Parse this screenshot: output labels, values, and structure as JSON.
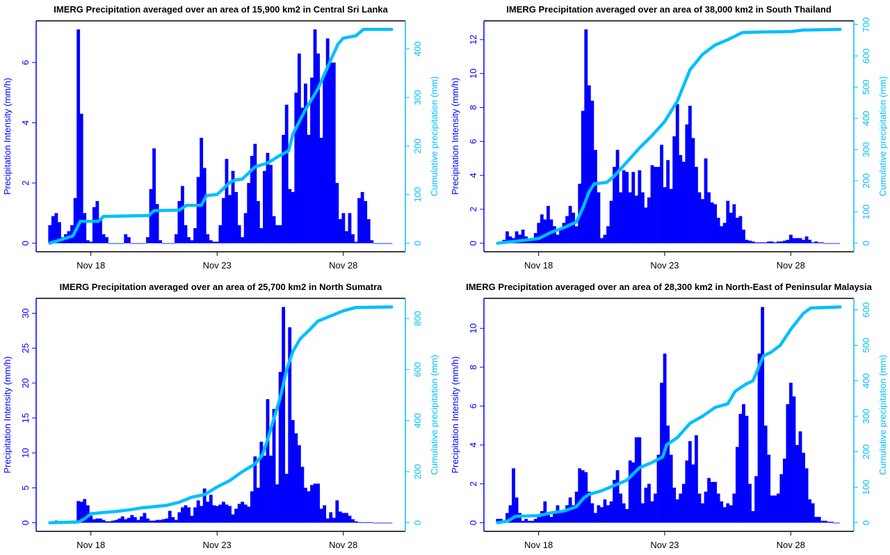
{
  "colors": {
    "intensity": "#0000ff",
    "cumulative": "#00bfff",
    "frame": "#000000"
  },
  "chart_data": [
    {
      "type": "bar+line",
      "title": "IMERG Precipitation averaged over an area of 15,900 km2 in Central Sri Lanka",
      "ylabel": "Precipitation Intensity (mm/h)",
      "ylabel_right": "Cumulative precipitation (mm)",
      "x_ticks": [
        "Nov 18",
        "Nov 23",
        "Nov 28"
      ],
      "y_ticks": [
        "0",
        "2",
        "4",
        "6"
      ],
      "y_ticks_right": [
        "0",
        "100",
        "200",
        "300",
        "400"
      ],
      "grid": false,
      "intensity": {
        "start": "Nov 16 09:00",
        "interval_hours": 3,
        "values": [
          0.6,
          0.9,
          1.0,
          0.7,
          0.2,
          0.3,
          0.4,
          0.6,
          1.5,
          7.1,
          4.3,
          1.0,
          0.1,
          0.05,
          1.2,
          1.4,
          0.8,
          0.3,
          0.2,
          0,
          0,
          0,
          0,
          0,
          0.3,
          0.2,
          0,
          0,
          0,
          0,
          0,
          0.2,
          1.8,
          3.15,
          1.3,
          0.1,
          0,
          0,
          0,
          0,
          0.3,
          1.4,
          1.9,
          0.6,
          0.2,
          0.1,
          0.5,
          2.2,
          3.5,
          2.5,
          0.3,
          0.1,
          0.05,
          0.05,
          0.6,
          1.5,
          2.8,
          1.6,
          2.4,
          1.7,
          0.6,
          0.2,
          1.0,
          2.0,
          2.9,
          3.3,
          1.4,
          0.5,
          2.4,
          3.0,
          2.6,
          0.9,
          0.6,
          0.6,
          3.6,
          4.6,
          1.8,
          1.7,
          5.0,
          6.3,
          4.5,
          5.3,
          3.6,
          5.5,
          7.1,
          6.3,
          3.5,
          5.6,
          6.8,
          6.0,
          6.0,
          2.0,
          0.8,
          1.0,
          0.4,
          1.0,
          0.3,
          0.05,
          1.5,
          1.7,
          1.4,
          0.8,
          0.1,
          0,
          0,
          0,
          0,
          0,
          0
        ]
      },
      "cumulative": [
        [
          "Nov 16 09:00",
          0
        ],
        [
          "Nov 17 07:00",
          15
        ],
        [
          "Nov 17 14:00",
          45
        ],
        [
          "Nov 18 07:00",
          45
        ],
        [
          "Nov 18 12:00",
          55
        ],
        [
          "Nov 20 07:00",
          57
        ],
        [
          "Nov 20 12:00",
          67
        ],
        [
          "Nov 21 12:00",
          68
        ],
        [
          "Nov 21 19:00",
          78
        ],
        [
          "Nov 22 09:00",
          78
        ],
        [
          "Nov 22 14:00",
          98
        ],
        [
          "Nov 23 00:00",
          100
        ],
        [
          "Nov 23 12:00",
          125
        ],
        [
          "Nov 23 17:00",
          130
        ],
        [
          "Nov 24 00:00",
          132
        ],
        [
          "Nov 24 12:00",
          157
        ],
        [
          "Nov 25 00:00",
          165
        ],
        [
          "Nov 25 12:00",
          181
        ],
        [
          "Nov 25 20:00",
          190
        ],
        [
          "Nov 26 00:00",
          224
        ],
        [
          "Nov 26 12:00",
          275
        ],
        [
          "Nov 27 00:00",
          318
        ],
        [
          "Nov 27 12:00",
          377
        ],
        [
          "Nov 27 19:00",
          410
        ],
        [
          "Nov 28 00:00",
          422
        ],
        [
          "Nov 28 12:00",
          427
        ],
        [
          "Nov 28 19:00",
          440
        ],
        [
          "Nov 29 22:00",
          440
        ]
      ]
    },
    {
      "type": "bar+line",
      "title": "IMERG Precipitation averaged over an area of 38,000 km2 in South Thailand",
      "ylabel": "Precipitation Intensity (mm/h)",
      "ylabel_right": "Cumulative precipitation (mm)",
      "x_ticks": [
        "Nov 18",
        "Nov 23",
        "Nov 28"
      ],
      "y_ticks": [
        "0",
        "2",
        "4",
        "6",
        "8",
        "10",
        "12"
      ],
      "y_ticks_right": [
        "0",
        "100",
        "200",
        "300",
        "400",
        "500",
        "600",
        "700"
      ],
      "grid": false,
      "intensity": {
        "start": "Nov 16 09:00",
        "interval_hours": 3,
        "values": [
          0,
          0.1,
          0.2,
          0.7,
          0.4,
          0.3,
          0.7,
          0.5,
          0.8,
          0.4,
          0.2,
          0.3,
          0.6,
          1.2,
          1.7,
          1.4,
          2.2,
          1.4,
          1.0,
          0.5,
          0.9,
          1.2,
          1.6,
          2.2,
          1.8,
          1.0,
          3.5,
          7.8,
          12.6,
          9.3,
          8.4,
          5.5,
          3.0,
          0.3,
          0.5,
          1.0,
          2.5,
          4.5,
          5.5,
          3.0,
          4.3,
          4.2,
          3.0,
          4.2,
          2.8,
          4.3,
          3.0,
          2.1,
          2.7,
          4.6,
          4.5,
          4.5,
          5.8,
          3.3,
          4.9,
          3.2,
          6.3,
          8.2,
          5.2,
          4.8,
          7.0,
          8.1,
          6.2,
          4.5,
          3.0,
          2.6,
          5.0,
          3.0,
          2.4,
          2.3,
          1.5,
          1.0,
          1.2,
          2.5,
          1.8,
          2.3,
          1.5,
          1.6,
          0.8,
          0.2,
          0.15,
          0.1,
          0.05,
          0.05,
          0.05,
          0.05,
          0.1,
          0.1,
          0.05,
          0.1,
          0.1,
          0.15,
          0.2,
          0.5,
          0.3,
          0.3,
          0.3,
          0.2,
          0.4,
          0.2,
          0.05,
          0.1,
          0.05,
          0.05,
          0,
          0,
          0,
          0,
          0
        ]
      },
      "cumulative": [
        [
          "Nov 16 09:00",
          0
        ],
        [
          "Nov 17 12:00",
          10
        ],
        [
          "Nov 18 00:00",
          15
        ],
        [
          "Nov 18 12:00",
          35
        ],
        [
          "Nov 19 00:00",
          50
        ],
        [
          "Nov 19 12:00",
          68
        ],
        [
          "Nov 19 19:00",
          120
        ],
        [
          "Nov 20 00:00",
          165
        ],
        [
          "Nov 20 05:00",
          190
        ],
        [
          "Nov 20 17:00",
          195
        ],
        [
          "Nov 21 00:00",
          215
        ],
        [
          "Nov 21 12:00",
          260
        ],
        [
          "Nov 22 00:00",
          305
        ],
        [
          "Nov 22 12:00",
          345
        ],
        [
          "Nov 23 00:00",
          390
        ],
        [
          "Nov 23 12:00",
          455
        ],
        [
          "Nov 24 00:00",
          555
        ],
        [
          "Nov 24 12:00",
          605
        ],
        [
          "Nov 25 00:00",
          635
        ],
        [
          "Nov 25 12:00",
          652
        ],
        [
          "Nov 26 02:00",
          675
        ],
        [
          "Nov 27 00:00",
          677
        ],
        [
          "Nov 28 00:00",
          678
        ],
        [
          "Nov 28 12:00",
          683
        ],
        [
          "Nov 29 23:00",
          685
        ]
      ]
    },
    {
      "type": "bar+line",
      "title": "IMERG Precipitation averaged over an area of 25,700 km2 in North Sumatra",
      "ylabel": "Precipitation Intensity (mm/h)",
      "ylabel_right": "Cumulative precipitation (mm)",
      "x_ticks": [
        "Nov 18",
        "Nov 23",
        "Nov 28"
      ],
      "y_ticks": [
        "0",
        "5",
        "10",
        "15",
        "20",
        "25",
        "30"
      ],
      "y_ticks_right": [
        "0",
        "200",
        "400",
        "600",
        "800"
      ],
      "grid": false,
      "intensity": {
        "start": "Nov 16 09:00",
        "interval_hours": 3,
        "values": [
          0.1,
          0.2,
          0.3,
          0.1,
          0.1,
          0,
          0,
          0,
          0.1,
          3.1,
          3.0,
          3.4,
          2.5,
          1.0,
          0.5,
          0.6,
          0.6,
          0.4,
          0.2,
          0.2,
          0.3,
          0.4,
          0.6,
          0.9,
          0.5,
          0.7,
          1.1,
          0.8,
          0.4,
          0.9,
          1.4,
          0.6,
          0.3,
          0.3,
          0.4,
          0.4,
          0.5,
          0.6,
          1.7,
          0.8,
          0.4,
          1.5,
          2.2,
          2.5,
          2.2,
          1.0,
          2.2,
          3.2,
          2.4,
          4.9,
          3.0,
          4.0,
          2.5,
          2.4,
          2.6,
          3.0,
          2.6,
          2.4,
          1.2,
          2.0,
          2.7,
          3.0,
          2.6,
          2.3,
          4.5,
          9.5,
          5.0,
          11.6,
          9.6,
          17.7,
          9.6,
          16.3,
          5.5,
          21.6,
          30.9,
          7.0,
          28.0,
          14.7,
          12.8,
          11.1,
          8.0,
          5.0,
          4.5,
          5.4,
          5.6,
          5.6,
          2.0,
          2.5,
          0.6,
          1.5,
          0.7,
          3.2,
          1.6,
          1.4,
          1.4,
          1.0,
          0.5,
          0.2,
          0.1,
          0.05,
          0.05,
          0.05,
          0.05,
          0,
          0,
          0,
          0,
          0,
          0
        ]
      },
      "cumulative": [
        [
          "Nov 16 09:00",
          0
        ],
        [
          "Nov 17 12:00",
          3
        ],
        [
          "Nov 17 18:00",
          15
        ],
        [
          "Nov 18 00:00",
          35
        ],
        [
          "Nov 18 12:00",
          40
        ],
        [
          "Nov 19 00:00",
          44
        ],
        [
          "Nov 19 12:00",
          50
        ],
        [
          "Nov 20 00:00",
          58
        ],
        [
          "Nov 20 12:00",
          63
        ],
        [
          "Nov 21 00:00",
          68
        ],
        [
          "Nov 21 12:00",
          80
        ],
        [
          "Nov 22 00:00",
          100
        ],
        [
          "Nov 22 12:00",
          110
        ],
        [
          "Nov 23 00:00",
          140
        ],
        [
          "Nov 23 12:00",
          165
        ],
        [
          "Nov 24 00:00",
          200
        ],
        [
          "Nov 24 12:00",
          230
        ],
        [
          "Nov 24 19:00",
          265
        ],
        [
          "Nov 25 00:00",
          325
        ],
        [
          "Nov 25 12:00",
          490
        ],
        [
          "Nov 25 18:00",
          597
        ],
        [
          "Nov 26 00:00",
          670
        ],
        [
          "Nov 26 07:00",
          720
        ],
        [
          "Nov 26 17:00",
          760
        ],
        [
          "Nov 27 00:00",
          790
        ],
        [
          "Nov 27 12:00",
          810
        ],
        [
          "Nov 28 00:00",
          830
        ],
        [
          "Nov 28 12:00",
          843
        ],
        [
          "Nov 29 22:00",
          845
        ]
      ]
    },
    {
      "type": "bar+line",
      "title": "IMERG Precipitation averaged over an area of 28,300 km2 in North-East of Peninsular Malaysia",
      "ylabel": "Precipitation Intensity (mm/h)",
      "ylabel_right": "Cumulative precipitation (mm)",
      "x_ticks": [
        "Nov 18",
        "Nov 23",
        "Nov 28"
      ],
      "y_ticks": [
        "0",
        "2",
        "4",
        "6",
        "8",
        "10"
      ],
      "y_ticks_right": [
        "0",
        "100",
        "200",
        "300",
        "400",
        "500",
        "600"
      ],
      "grid": false,
      "intensity": {
        "start": "Nov 16 09:00",
        "interval_hours": 3,
        "values": [
          0.2,
          0.2,
          0.1,
          0.5,
          0.9,
          2.8,
          1.3,
          0.5,
          0.1,
          0.2,
          0.1,
          0.1,
          0.2,
          0.4,
          0.6,
          1.1,
          0.5,
          0.3,
          0.6,
          0.9,
          0.6,
          0.6,
          0.9,
          1.3,
          0.9,
          1.6,
          2.8,
          2.7,
          2.6,
          1.6,
          1.0,
          0.5,
          0.9,
          0.8,
          1.2,
          0.9,
          1.1,
          2.2,
          2.7,
          1.5,
          1.0,
          0.7,
          3.2,
          3.1,
          4.4,
          4.4,
          1.0,
          1.8,
          2.0,
          1.1,
          1.5,
          3.5,
          7.2,
          8.7,
          5.0,
          3.5,
          1.8,
          1.2,
          1.5,
          2.0,
          3.2,
          4.2,
          3.0,
          4.5,
          1.5,
          1.0,
          1.6,
          2.3,
          2.1,
          2.1,
          1.5,
          1.1,
          0.8,
          1.0,
          0.9,
          1.5,
          3.9,
          5.6,
          6.1,
          5.5,
          2.0,
          0.6,
          2.4,
          8.7,
          11.1,
          5.0,
          3.5,
          1.4,
          1.4,
          1.5,
          2.5,
          3.3,
          6.1,
          7.2,
          6.5,
          4.0,
          4.7,
          3.6,
          2.8,
          1.2,
          1.0,
          0.3,
          0.3,
          0.1,
          0.1,
          0.05,
          0.05,
          0,
          0
        ]
      },
      "cumulative": [
        [
          "Nov 16 09:00",
          0
        ],
        [
          "Nov 16 19:00",
          5
        ],
        [
          "Nov 17 02:00",
          18
        ],
        [
          "Nov 18 00:00",
          20
        ],
        [
          "Nov 18 12:00",
          28
        ],
        [
          "Nov 19 00:00",
          33
        ],
        [
          "Nov 19 12:00",
          45
        ],
        [
          "Nov 19 19:00",
          70
        ],
        [
          "Nov 20 00:00",
          80
        ],
        [
          "Nov 20 12:00",
          90
        ],
        [
          "Nov 21 00:00",
          105
        ],
        [
          "Nov 21 12:00",
          120
        ],
        [
          "Nov 22 00:00",
          155
        ],
        [
          "Nov 22 12:00",
          170
        ],
        [
          "Nov 22 22:00",
          185
        ],
        [
          "Nov 23 02:00",
          220
        ],
        [
          "Nov 23 12:00",
          240
        ],
        [
          "Nov 24 00:00",
          280
        ],
        [
          "Nov 24 12:00",
          300
        ],
        [
          "Nov 25 00:00",
          325
        ],
        [
          "Nov 25 12:00",
          335
        ],
        [
          "Nov 25 19:00",
          370
        ],
        [
          "Nov 26 05:00",
          390
        ],
        [
          "Nov 26 12:00",
          400
        ],
        [
          "Nov 26 22:00",
          470
        ],
        [
          "Nov 27 05:00",
          480
        ],
        [
          "Nov 27 14:00",
          500
        ],
        [
          "Nov 28 00:00",
          545
        ],
        [
          "Nov 28 12:00",
          590
        ],
        [
          "Nov 28 19:00",
          605
        ],
        [
          "Nov 29 23:00",
          608
        ]
      ]
    }
  ]
}
